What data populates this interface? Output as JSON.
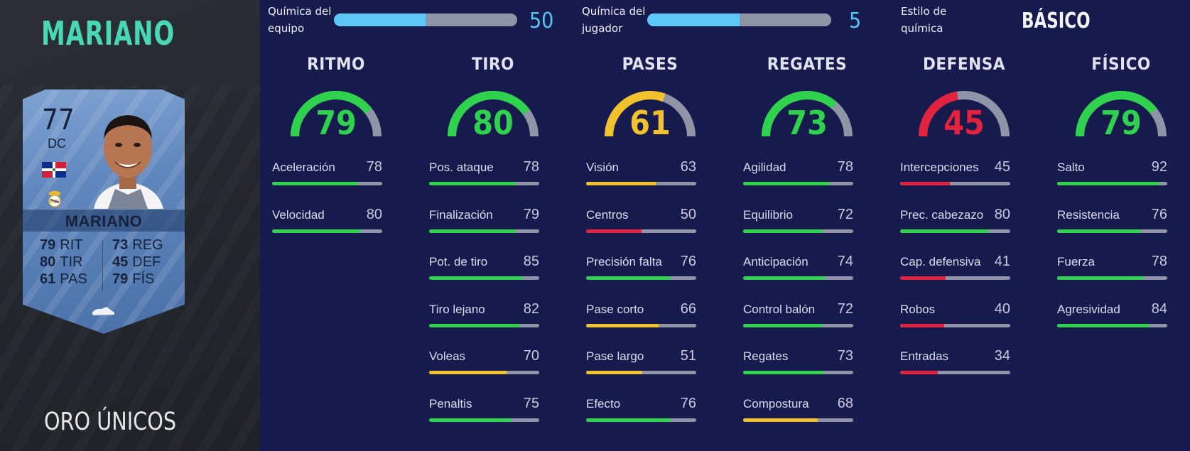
{
  "player": {
    "name": "MARIANO",
    "card_type": "ORO ÚNICOS",
    "card": {
      "rating": "77",
      "position": "DC",
      "name": "MARIANO",
      "stats": [
        {
          "value": "79",
          "label": "RIT"
        },
        {
          "value": "80",
          "label": "TIR"
        },
        {
          "value": "61",
          "label": "PAS"
        },
        {
          "value": "73",
          "label": "REG"
        },
        {
          "value": "45",
          "label": "DEF"
        },
        {
          "value": "79",
          "label": "FÍS"
        }
      ]
    }
  },
  "chemistry": {
    "team": {
      "label_line1": "Química del",
      "label_line2": "equipo",
      "value": "50",
      "fraction": 0.5
    },
    "player": {
      "label_line1": "Química del",
      "label_line2": "jugador",
      "value": "5",
      "fraction": 0.5
    },
    "style": {
      "label_line1": "Estilo de",
      "label_line2": "química",
      "value": "BÁSICO"
    }
  },
  "colors": {
    "green": "#2fd24d",
    "yellow": "#f2c12e",
    "red": "#e2233f",
    "track": "#8f95a6",
    "chem": "#5dc8f5"
  },
  "categories": [
    {
      "title": "RITMO",
      "value": "79",
      "color": "green",
      "stats": [
        {
          "label": "Aceleración",
          "value": "78",
          "color": "green"
        },
        {
          "label": "Velocidad",
          "value": "80",
          "color": "green"
        }
      ]
    },
    {
      "title": "TIRO",
      "value": "80",
      "color": "green",
      "stats": [
        {
          "label": "Pos. ataque",
          "value": "78",
          "color": "green"
        },
        {
          "label": "Finalización",
          "value": "79",
          "color": "green"
        },
        {
          "label": "Pot. de tiro",
          "value": "85",
          "color": "green"
        },
        {
          "label": "Tiro lejano",
          "value": "82",
          "color": "green"
        },
        {
          "label": "Voleas",
          "value": "70",
          "color": "yellow"
        },
        {
          "label": "Penaltis",
          "value": "75",
          "color": "green"
        }
      ]
    },
    {
      "title": "PASES",
      "value": "61",
      "color": "yellow",
      "stats": [
        {
          "label": "Visión",
          "value": "63",
          "color": "yellow"
        },
        {
          "label": "Centros",
          "value": "50",
          "color": "red"
        },
        {
          "label": "Precisión falta",
          "value": "76",
          "color": "green"
        },
        {
          "label": "Pase corto",
          "value": "66",
          "color": "yellow"
        },
        {
          "label": "Pase largo",
          "value": "51",
          "color": "yellow"
        },
        {
          "label": "Efecto",
          "value": "76",
          "color": "green"
        }
      ]
    },
    {
      "title": "REGATES",
      "value": "73",
      "color": "green",
      "stats": [
        {
          "label": "Agilidad",
          "value": "78",
          "color": "green"
        },
        {
          "label": "Equilibrio",
          "value": "72",
          "color": "green"
        },
        {
          "label": "Anticipación",
          "value": "74",
          "color": "green"
        },
        {
          "label": "Control balón",
          "value": "72",
          "color": "green"
        },
        {
          "label": "Regates",
          "value": "73",
          "color": "green"
        },
        {
          "label": "Compostura",
          "value": "68",
          "color": "yellow"
        }
      ]
    },
    {
      "title": "DEFENSA",
      "value": "45",
      "color": "red",
      "stats": [
        {
          "label": "Intercepciones",
          "value": "45",
          "color": "red"
        },
        {
          "label": "Prec. cabezazo",
          "value": "80",
          "color": "green"
        },
        {
          "label": "Cap. defensiva",
          "value": "41",
          "color": "red"
        },
        {
          "label": "Robos",
          "value": "40",
          "color": "red"
        },
        {
          "label": "Entradas",
          "value": "34",
          "color": "red"
        }
      ]
    },
    {
      "title": "FÍSICO",
      "value": "79",
      "color": "green",
      "stats": [
        {
          "label": "Salto",
          "value": "92",
          "color": "green"
        },
        {
          "label": "Resistencia",
          "value": "76",
          "color": "green"
        },
        {
          "label": "Fuerza",
          "value": "78",
          "color": "green"
        },
        {
          "label": "Agresividad",
          "value": "84",
          "color": "green"
        }
      ]
    }
  ]
}
